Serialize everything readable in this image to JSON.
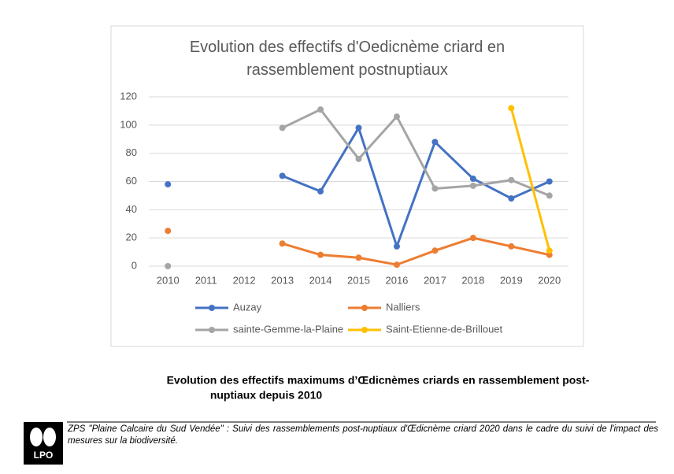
{
  "chart_data": {
    "type": "line",
    "title": "Evolution des effectifs d'Oedicnème criard en rassemblement postnuptiaux",
    "categories": [
      "2010",
      "2011",
      "2012",
      "2013",
      "2014",
      "2015",
      "2016",
      "2017",
      "2018",
      "2019",
      "2020"
    ],
    "series": [
      {
        "name": "Auzay",
        "color": "#4472c4",
        "values": [
          58,
          null,
          null,
          64,
          53,
          98,
          14,
          88,
          62,
          48,
          60
        ]
      },
      {
        "name": "Nalliers",
        "color": "#ed7d31",
        "values": [
          25,
          null,
          null,
          16,
          8,
          6,
          1,
          11,
          20,
          14,
          8
        ]
      },
      {
        "name": "sainte-Gemme-la-Plaine",
        "color": "#a5a5a5",
        "values": [
          0,
          null,
          null,
          98,
          111,
          76,
          106,
          55,
          57,
          61,
          50
        ]
      },
      {
        "name": "Saint-Etienne-de-Brillouet",
        "color": "#ffc000",
        "values": [
          null,
          null,
          null,
          null,
          null,
          null,
          null,
          null,
          null,
          112,
          11
        ]
      }
    ],
    "ylim": [
      0,
      120
    ],
    "yticks": [
      0,
      20,
      40,
      60,
      80,
      100,
      120
    ],
    "grid": true
  },
  "caption": [
    "Evolution des effectifs maximums d’Œdicnèmes criards en rassemblement post-",
    "nuptiaux depuis 2010"
  ],
  "footer": "ZPS \"Plaine Calcaire du Sud Vendée\" : Suivi des rassemblements post-nuptiaux d'Œdicnème criard 2020 dans le cadre du suivi de l'impact des mesures sur la biodiversité.",
  "logo": "LPO"
}
